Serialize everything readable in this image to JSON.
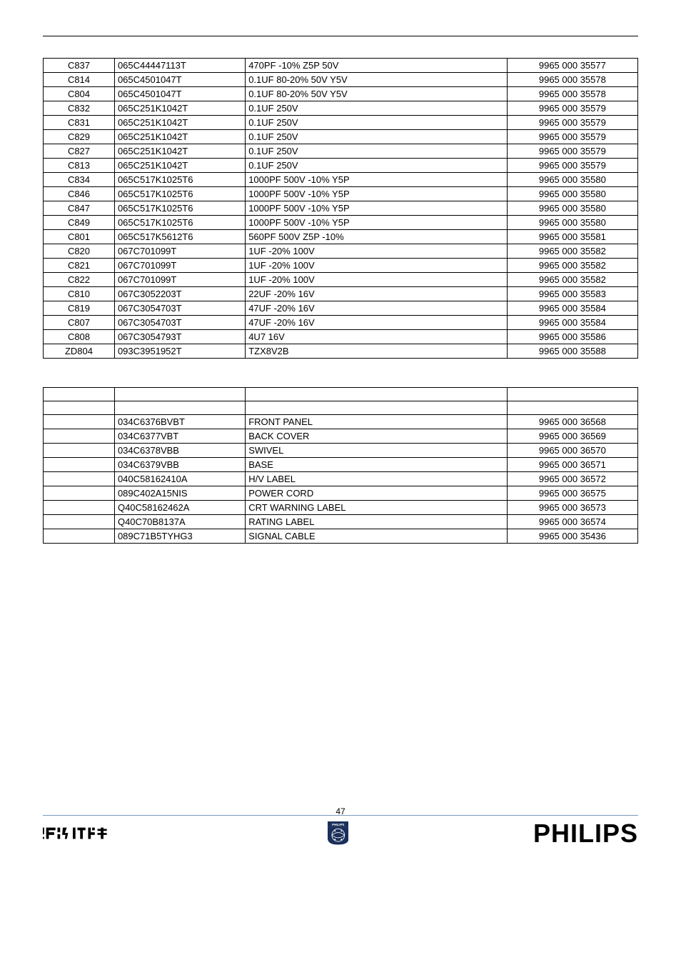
{
  "table1": {
    "rows": [
      {
        "a": "C837",
        "b": "065C44447113T",
        "c": "470PF   -10% Z5P 50V",
        "d": "9965 000 35577"
      },
      {
        "a": "C814",
        "b": "065C4501047T",
        "c": "0.1UF   80-20% 50V Y5V",
        "d": "9965 000 35578"
      },
      {
        "a": "C804",
        "b": "065C4501047T",
        "c": "0.1UF   80-20% 50V Y5V",
        "d": "9965 000 35578"
      },
      {
        "a": "C832",
        "b": "065C251K1042T",
        "c": "0.1UF 250V",
        "d": "9965 000 35579"
      },
      {
        "a": "C831",
        "b": "065C251K1042T",
        "c": "0.1UF 250V",
        "d": "9965 000 35579"
      },
      {
        "a": "C829",
        "b": "065C251K1042T",
        "c": "0.1UF 250V",
        "d": "9965 000 35579"
      },
      {
        "a": "C827",
        "b": "065C251K1042T",
        "c": "0.1UF 250V",
        "d": "9965 000 35579"
      },
      {
        "a": "C813",
        "b": "065C251K1042T",
        "c": "0.1UF 250V",
        "d": "9965 000 35579"
      },
      {
        "a": "C834",
        "b": "065C517K1025T6",
        "c": "1000PF 500V   -10% Y5P",
        "d": "9965 000 35580"
      },
      {
        "a": "C846",
        "b": "065C517K1025T6",
        "c": "1000PF 500V   -10% Y5P",
        "d": "9965 000 35580"
      },
      {
        "a": "C847",
        "b": "065C517K1025T6",
        "c": "1000PF 500V   -10% Y5P",
        "d": "9965 000 35580"
      },
      {
        "a": "C849",
        "b": "065C517K1025T6",
        "c": "1000PF 500V   -10% Y5P",
        "d": "9965 000 35580"
      },
      {
        "a": "C801",
        "b": "065C517K5612T6",
        "c": "560PF 500V Z5P   -10%",
        "d": "9965 000 35581"
      },
      {
        "a": "C820",
        "b": "067C701099T",
        "c": "1UF   -20% 100V",
        "d": "9965 000 35582"
      },
      {
        "a": "C821",
        "b": "067C701099T",
        "c": "1UF   -20% 100V",
        "d": "9965 000 35582"
      },
      {
        "a": "C822",
        "b": "067C701099T",
        "c": "1UF   -20% 100V",
        "d": "9965 000 35582"
      },
      {
        "a": "C810",
        "b": "067C3052203T",
        "c": "22UF   -20% 16V",
        "d": "9965 000 35583"
      },
      {
        "a": "C819",
        "b": "067C3054703T",
        "c": "47UF   -20% 16V",
        "d": "9965 000 35584"
      },
      {
        "a": "C807",
        "b": "067C3054703T",
        "c": "47UF   -20% 16V",
        "d": "9965 000 35584"
      },
      {
        "a": "C808",
        "b": "067C3054793T",
        "c": "4U7 16V",
        "d": "9965 000 35586"
      },
      {
        "a": "ZD804",
        "b": "093C3951952T",
        "c": "TZX8V2B",
        "d": "9965 000 35588"
      }
    ]
  },
  "table2": {
    "rows": [
      {
        "a": "",
        "b": "",
        "c": "",
        "d": ""
      },
      {
        "a": "",
        "b": "",
        "c": "",
        "d": ""
      },
      {
        "a": "",
        "b": "034C6376BVBT",
        "c": "FRONT PANEL",
        "d": "9965 000 36568"
      },
      {
        "a": "",
        "b": "034C6377VBT",
        "c": "BACK COVER",
        "d": "9965 000 36569"
      },
      {
        "a": "",
        "b": "034C6378VBB",
        "c": "SWIVEL",
        "d": "9965 000 36570"
      },
      {
        "a": "",
        "b": "034C6379VBB",
        "c": "BASE",
        "d": "9965 000 36571"
      },
      {
        "a": "",
        "b": "040C58162410A",
        "c": "H/V LABEL",
        "d": "9965 000 36572"
      },
      {
        "a": "",
        "b": "089C402A15NIS",
        "c": "POWER CORD",
        "d": "9965 000 36575"
      },
      {
        "a": "",
        "b": "Q40C58162462A",
        "c": "CRT WARNING LABEL",
        "d": "9965 000 36573"
      },
      {
        "a": "",
        "b": "Q40C70B8137A",
        "c": "RATING LABEL",
        "d": "9965 000 36574"
      },
      {
        "a": "",
        "b": "089C71B5TYHG3",
        "c": "SIGNAL CABLE",
        "d": "9965 000 35436"
      }
    ]
  },
  "footer": {
    "page": "47",
    "brand": "PHILIPS"
  }
}
